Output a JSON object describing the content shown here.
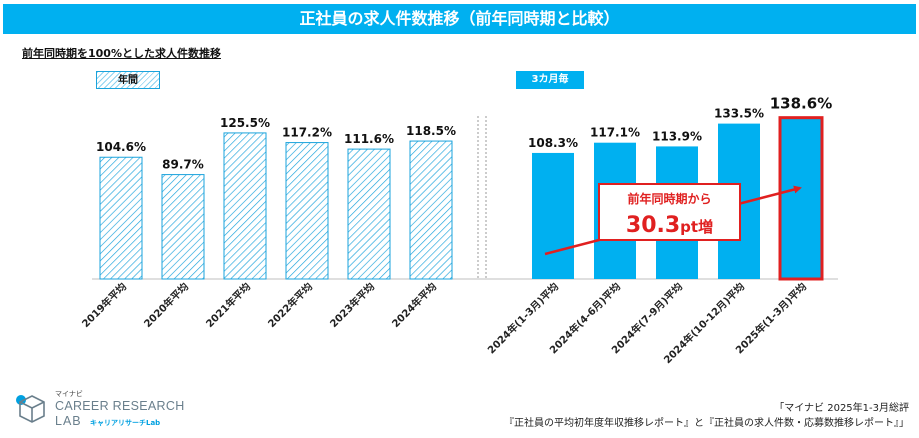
{
  "header": {
    "title": "正社員の求人件数推移（前年同時期と比較）"
  },
  "subtitle": "前年同時期を100%とした求人件数推移",
  "tags": {
    "annual": "年間",
    "quarterly": "3カ月毎"
  },
  "chart_data": {
    "type": "bar",
    "title": "正社員の求人件数推移（前年同時期と比較）",
    "ylabel": "前年同時期を100%とした求人件数推移",
    "categories": [
      "2019年平均",
      "2020年平均",
      "2021年平均",
      "2022年平均",
      "2023年平均",
      "2024年平均",
      "2024年(1-3月)平均",
      "2024年(4-6月)平均",
      "2024年(7-9月)平均",
      "2024年(10-12月)平均",
      "2025年(1-3月)平均"
    ],
    "values": [
      104.6,
      89.7,
      125.5,
      117.2,
      111.6,
      118.5,
      108.3,
      117.1,
      113.9,
      133.5,
      138.6
    ],
    "labels": [
      "104.6%",
      "89.7%",
      "125.5%",
      "117.2%",
      "111.6%",
      "118.5%",
      "108.3%",
      "117.1%",
      "113.9%",
      "133.5%",
      "138.6%"
    ],
    "groups": [
      {
        "name": "年間",
        "style": "hatched",
        "count": 6
      },
      {
        "name": "3カ月毎",
        "style": "solid",
        "count": 5
      }
    ],
    "highlight_index": 10,
    "baseline": 0
  },
  "annotation": {
    "line1": "前年同時期から",
    "value": "30.3",
    "unit": "pt増"
  },
  "source": {
    "line1": "「マイナビ 2025年1-3月総評",
    "line2": "『正社員の平均初年度年収推移レポート』と『正社員の求人件数・応募数推移レポート』」"
  },
  "logo": {
    "ja": "マイナビ",
    "line1": "CAREER RESEARCH",
    "line2": "LAB",
    "sub": "キャリアリサーチLab"
  },
  "colors": {
    "accent": "#00b0f0",
    "highlight": "#e02020",
    "hatch": "#1aa3dc"
  }
}
